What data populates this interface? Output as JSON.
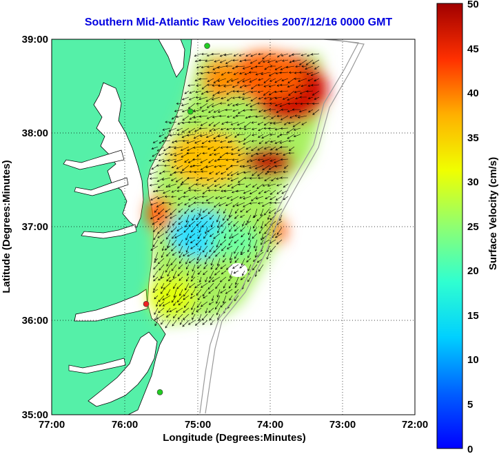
{
  "title": "Southern Mid-Atlantic Raw Velocities 2007/12/16 0000 GMT",
  "x_axis": {
    "label": "Longitude (Degrees:Minutes)",
    "ticks": [
      "77:00",
      "76:00",
      "75:00",
      "74:00",
      "73:00",
      "72:00"
    ]
  },
  "y_axis": {
    "label": "Latitude (Degrees:Minutes)",
    "ticks": [
      "39:00",
      "38:00",
      "37:00",
      "36:00",
      "35:00"
    ]
  },
  "colorbar": {
    "label": "Surface Velocity (cm/s)",
    "ticks": [
      "50",
      "45",
      "40",
      "35",
      "30",
      "25",
      "20",
      "15",
      "10",
      "5",
      "0"
    ],
    "min": 0,
    "max": 50,
    "colormap": "jet"
  },
  "colors": {
    "land": "#55f0a8",
    "water": "#ffffff",
    "title": "#0000e0",
    "coastline": "#000000",
    "bathymetry": "#999999"
  },
  "stations": [
    {
      "lon": -74.86,
      "lat": 38.93,
      "color": "#22cc22"
    },
    {
      "lon": -75.09,
      "lat": 38.23,
      "color": "#22cc22"
    },
    {
      "lon": -75.7,
      "lat": 36.18,
      "color": "#ee2222"
    },
    {
      "lon": -75.51,
      "lat": 35.24,
      "color": "#22cc22"
    }
  ]
}
